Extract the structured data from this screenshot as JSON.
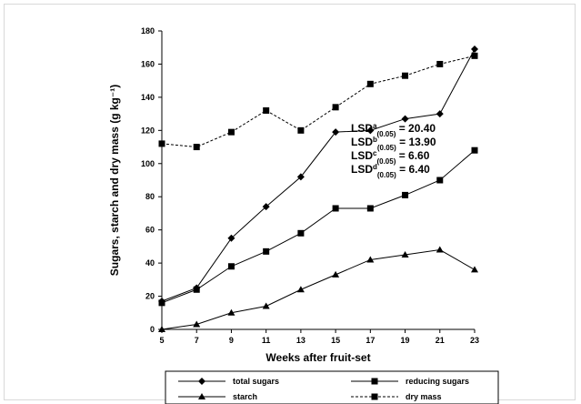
{
  "chart_data": {
    "type": "line",
    "title": "",
    "xlabel": "Weeks after fruit-set",
    "ylabel": "Sugars, starch and dry mass (g kg⁻¹)",
    "x": [
      5,
      7,
      9,
      11,
      13,
      15,
      17,
      19,
      21,
      23
    ],
    "xlim": [
      5,
      23
    ],
    "ylim": [
      0,
      180
    ],
    "x_ticks": [
      "5",
      "7",
      "9",
      "11",
      "13",
      "15",
      "17",
      "19",
      "21",
      "23"
    ],
    "y_ticks": [
      "0",
      "20",
      "40",
      "60",
      "80",
      "100",
      "120",
      "140",
      "160",
      "180"
    ],
    "grid": false,
    "legend_position": "bottom",
    "series": [
      {
        "name": "total sugars",
        "marker": "diamond",
        "line": "solid",
        "values": [
          17,
          25,
          55,
          74,
          92,
          119,
          120,
          127,
          130,
          169
        ]
      },
      {
        "name": "reducing sugars",
        "marker": "square",
        "line": "solid",
        "values": [
          16,
          24,
          38,
          47,
          58,
          73,
          73,
          81,
          90,
          108
        ]
      },
      {
        "name": "starch",
        "marker": "triangle",
        "line": "solid",
        "values": [
          0,
          3,
          10,
          14,
          24,
          33,
          42,
          45,
          48,
          36
        ]
      },
      {
        "name": "dry mass",
        "marker": "square",
        "line": "dashed",
        "values": [
          112,
          110,
          119,
          132,
          120,
          134,
          148,
          153,
          160,
          165
        ]
      }
    ],
    "annotations": [
      {
        "base": "LSD",
        "sup": "a",
        "sub": "(0.05)",
        "text": " = 20.40"
      },
      {
        "base": "LSD",
        "sup": "b",
        "sub": "(0.05)",
        "text": " = 13.90"
      },
      {
        "base": "LSD",
        "sup": "c",
        "sub": "(0.05)",
        "text": " =  6.60"
      },
      {
        "base": "LSD",
        "sup": "d",
        "sub": "(0.05)",
        "text": " = 6.40"
      }
    ],
    "legend_entries": [
      {
        "label": "total sugars",
        "marker": "diamond",
        "line": "solid"
      },
      {
        "label": "reducing sugars",
        "marker": "square",
        "line": "solid"
      },
      {
        "label": "starch",
        "marker": "triangle",
        "line": "solid"
      },
      {
        "label": "dry mass",
        "marker": "square",
        "line": "dashed"
      }
    ]
  }
}
